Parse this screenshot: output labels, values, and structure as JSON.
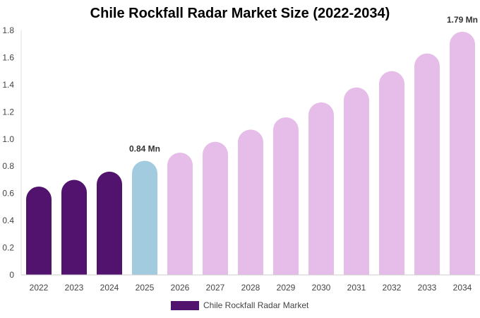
{
  "chart_data": {
    "type": "bar",
    "title": "Chile Rockfall Radar Market Size (2022-2034)",
    "categories": [
      "2022",
      "2023",
      "2024",
      "2025",
      "2026",
      "2027",
      "2028",
      "2029",
      "2030",
      "2031",
      "2032",
      "2033",
      "2034"
    ],
    "series": [
      {
        "name": "Chile Rockfall Radar Market",
        "values": [
          0.65,
          0.7,
          0.76,
          0.84,
          0.9,
          0.98,
          1.07,
          1.16,
          1.27,
          1.38,
          1.5,
          1.63,
          1.79
        ]
      }
    ],
    "ylim": [
      0,
      1.8
    ],
    "yticks": [
      "0",
      "0.2",
      "0.4",
      "0.6",
      "0.8",
      "1.0",
      "1.2",
      "1.4",
      "1.6",
      "1.8"
    ],
    "data_labels": [
      {
        "category": "2025",
        "text": "0.84 Mn"
      },
      {
        "category": "2034",
        "text": "1.79 Mn"
      }
    ],
    "colors": {
      "historical": "#52136f",
      "base_year": "#a3cbdf",
      "forecast": "#e6bde9"
    },
    "bar_color_keys": [
      "historical",
      "historical",
      "historical",
      "base_year",
      "forecast",
      "forecast",
      "forecast",
      "forecast",
      "forecast",
      "forecast",
      "forecast",
      "forecast",
      "forecast"
    ],
    "grid": false,
    "legend_position": "bottom"
  }
}
